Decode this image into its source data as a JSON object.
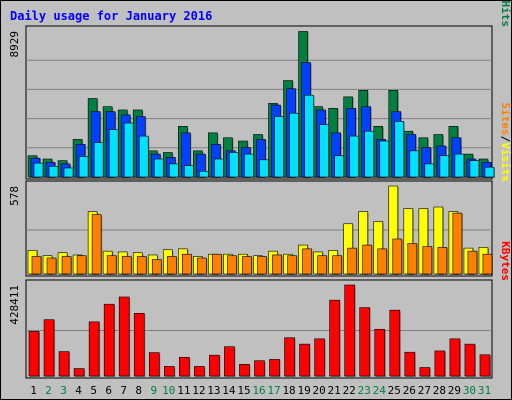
{
  "chart_data": {
    "type": "bar",
    "title": "Daily usage for January 2016",
    "categories": [
      "1",
      "2",
      "3",
      "4",
      "5",
      "6",
      "7",
      "8",
      "9",
      "10",
      "11",
      "12",
      "13",
      "14",
      "15",
      "16",
      "17",
      "18",
      "19",
      "20",
      "21",
      "22",
      "23",
      "24",
      "25",
      "26",
      "27",
      "28",
      "29",
      "30",
      "31"
    ],
    "weekend_days": [
      "2",
      "3",
      "9",
      "10",
      "16",
      "17",
      "23",
      "24",
      "30",
      "31"
    ],
    "panels": [
      {
        "id": "pages-files-hits",
        "max_label": "8929",
        "ylim": [
          0,
          8929
        ],
        "legend": [
          "Pages",
          "Files",
          "Hits"
        ],
        "series": [
          {
            "name": "Hits",
            "color": "#008040",
            "values": [
              1300,
              1100,
              1000,
              2300,
              4800,
              4300,
              4100,
              4100,
              1600,
              1500,
              3100,
              1600,
              2700,
              2400,
              2200,
              2600,
              4500,
              5900,
              8900,
              4300,
              4200,
              4900,
              5300,
              3100,
              5300,
              2800,
              2400,
              2600,
              3100,
              1400,
              1100
            ]
          },
          {
            "name": "Files",
            "color": "#0040ff",
            "values": [
              1150,
              900,
              800,
              2000,
              4000,
              4000,
              3800,
              3700,
              1400,
              1200,
              2700,
              1400,
              2000,
              1600,
              1800,
              2300,
              4400,
              5400,
              7000,
              4100,
              2700,
              4200,
              4300,
              2300,
              4000,
              2600,
              1800,
              1900,
              2400,
              1100,
              900
            ]
          },
          {
            "name": "Pages",
            "color": "#00e0ff",
            "values": [
              850,
              650,
              550,
              1250,
              2100,
              2900,
              3300,
              2500,
              1100,
              800,
              700,
              350,
              1100,
              1500,
              1400,
              1050,
              3700,
              3900,
              5000,
              3200,
              1300,
              2500,
              2800,
              2200,
              3400,
              1600,
              800,
              1300,
              1400,
              1000,
              600
            ]
          }
        ]
      },
      {
        "id": "sites-visits",
        "max_label": "578",
        "ylim": [
          0,
          578
        ],
        "legend": [
          "Sites",
          "Visits"
        ],
        "series": [
          {
            "name": "Visits",
            "color": "#ffff00",
            "values": [
              155,
              120,
              140,
              125,
              410,
              150,
              145,
              140,
              125,
              160,
              165,
              115,
              130,
              130,
              130,
              120,
              150,
              130,
              190,
              145,
              155,
              330,
              410,
              345,
              578,
              430,
              430,
              440,
              410,
              170,
              175
            ]
          },
          {
            "name": "Sites",
            "color": "#ff8000",
            "values": [
              115,
              105,
              115,
              120,
              390,
              120,
              115,
              115,
              95,
              115,
              130,
              105,
              130,
              120,
              115,
              115,
              125,
              120,
              165,
              120,
              120,
              170,
              190,
              165,
              230,
              200,
              180,
              175,
              400,
              150,
              130
            ]
          }
        ]
      },
      {
        "id": "kbytes",
        "max_label": "428411",
        "ylim": [
          0,
          428411
        ],
        "legend": [
          "KBytes"
        ],
        "series": [
          {
            "name": "KBytes",
            "color": "#ff0000",
            "values": [
              210000,
              265000,
              115000,
              35000,
              255000,
              338000,
              372000,
              295000,
              110000,
              45000,
              88000,
              45000,
              98000,
              138000,
              55000,
              72000,
              78000,
              180000,
              150000,
              175000,
              357000,
              428411,
              322000,
              220000,
              310000,
              112000,
              40000,
              118000,
              175000,
              150000,
              100000
            ]
          }
        ]
      }
    ]
  }
}
